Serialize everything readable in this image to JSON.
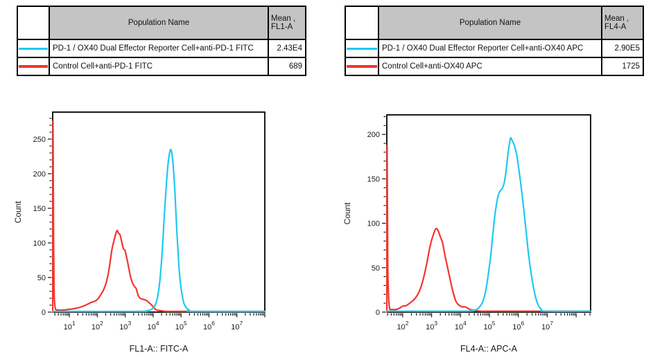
{
  "tables": [
    {
      "header": {
        "population": "Population Name",
        "mean_line1": "Mean ,",
        "mean_line2": "FL1-A"
      },
      "rows": [
        {
          "color": "#1ec9f2",
          "population": "PD-1 / OX40 Dual Effector Reporter Cell+anti-PD-1 FITC",
          "mean": "2.43E4"
        },
        {
          "color": "#f5342c",
          "population": "Control Cell+anti-PD-1 FITC",
          "mean": "689"
        }
      ]
    },
    {
      "header": {
        "population": "Population Name",
        "mean_line1": "Mean ,",
        "mean_line2": "FL4-A"
      },
      "rows": [
        {
          "color": "#1ec9f2",
          "population": "PD-1 / OX40 Dual Effector Reporter Cell+anti-OX40 APC",
          "mean": "2.90E5"
        },
        {
          "color": "#f5342c",
          "population": "Control Cell+anti-OX40 APC",
          "mean": "1725"
        }
      ]
    }
  ],
  "colors": {
    "cyan": "#1ec9f2",
    "red": "#f5342c",
    "table_header_bg": "#c4c4c4",
    "axis": "#000000"
  },
  "chart_data": [
    {
      "type": "line",
      "title": "",
      "xlabel": "FL1-A:: FITC-A",
      "ylabel": "Count",
      "x_scale": "log10",
      "x_range_decades": [
        0.4,
        8.0
      ],
      "x_tick_decades": [
        1,
        2,
        3,
        4,
        5,
        6,
        7
      ],
      "ylim": [
        0,
        289
      ],
      "y_ticks": [
        0,
        50,
        100,
        150,
        200,
        250
      ],
      "y_minor_step": 10,
      "grid": false,
      "legend_position": "none",
      "series": [
        {
          "name": "Control Cell+anti-PD-1 FITC",
          "color": "#f5342c",
          "mean": "689",
          "points_decade_count": [
            [
              0.4,
              0
            ],
            [
              0.41,
              275
            ],
            [
              0.43,
              118
            ],
            [
              0.45,
              30
            ],
            [
              0.49,
              6
            ],
            [
              0.58,
              3
            ],
            [
              0.78,
              3
            ],
            [
              0.98,
              4
            ],
            [
              1.18,
              5
            ],
            [
              1.38,
              7
            ],
            [
              1.58,
              10
            ],
            [
              1.78,
              14
            ],
            [
              1.92,
              16
            ],
            [
              2.02,
              19
            ],
            [
              2.12,
              25
            ],
            [
              2.22,
              32
            ],
            [
              2.32,
              43
            ],
            [
              2.42,
              62
            ],
            [
              2.52,
              90
            ],
            [
              2.6,
              104
            ],
            [
              2.66,
              113
            ],
            [
              2.71,
              118
            ],
            [
              2.76,
              114
            ],
            [
              2.81,
              112
            ],
            [
              2.87,
              102
            ],
            [
              2.93,
              92
            ],
            [
              2.99,
              89
            ],
            [
              3.06,
              77
            ],
            [
              3.13,
              63
            ],
            [
              3.19,
              51
            ],
            [
              3.26,
              42
            ],
            [
              3.33,
              37
            ],
            [
              3.39,
              34
            ],
            [
              3.45,
              26
            ],
            [
              3.51,
              21
            ],
            [
              3.59,
              19
            ],
            [
              3.69,
              18
            ],
            [
              3.79,
              16
            ],
            [
              3.87,
              13
            ],
            [
              3.95,
              10
            ],
            [
              4.03,
              6
            ],
            [
              4.13,
              3
            ],
            [
              4.28,
              2
            ],
            [
              4.5,
              1
            ],
            [
              5.2,
              1
            ],
            [
              8.0,
              1
            ]
          ]
        },
        {
          "name": "PD-1 / OX40 Dual Effector Reporter Cell+anti-PD-1 FITC",
          "color": "#1ec9f2",
          "mean": "2.43E4",
          "points_decade_count": [
            [
              0.4,
              1
            ],
            [
              3.55,
              1
            ],
            [
              3.76,
              2
            ],
            [
              3.9,
              3
            ],
            [
              4.0,
              6
            ],
            [
              4.08,
              11
            ],
            [
              4.16,
              22
            ],
            [
              4.24,
              45
            ],
            [
              4.32,
              85
            ],
            [
              4.4,
              140
            ],
            [
              4.47,
              183
            ],
            [
              4.53,
              213
            ],
            [
              4.59,
              230
            ],
            [
              4.63,
              235
            ],
            [
              4.68,
              227
            ],
            [
              4.73,
              205
            ],
            [
              4.78,
              173
            ],
            [
              4.83,
              131
            ],
            [
              4.88,
              95
            ],
            [
              4.93,
              62
            ],
            [
              4.99,
              38
            ],
            [
              5.05,
              22
            ],
            [
              5.11,
              12
            ],
            [
              5.19,
              6
            ],
            [
              5.29,
              3
            ],
            [
              5.42,
              1
            ],
            [
              8.0,
              1
            ]
          ]
        }
      ]
    },
    {
      "type": "line",
      "title": "",
      "xlabel": "FL4-A:: APC-A",
      "ylabel": "Count",
      "x_scale": "log10",
      "x_range_decades": [
        1.45,
        8.5
      ],
      "x_tick_decades": [
        2,
        3,
        4,
        5,
        6,
        7
      ],
      "ylim": [
        0,
        222
      ],
      "y_ticks": [
        0,
        50,
        100,
        150,
        200
      ],
      "y_minor_step": 10,
      "grid": false,
      "legend_position": "none",
      "series": [
        {
          "name": "Control Cell+anti-OX40 APC",
          "color": "#f5342c",
          "mean": "1725",
          "points_decade_count": [
            [
              1.45,
              0
            ],
            [
              1.46,
              187
            ],
            [
              1.48,
              60
            ],
            [
              1.5,
              28
            ],
            [
              1.54,
              5
            ],
            [
              1.62,
              3
            ],
            [
              1.78,
              3
            ],
            [
              1.92,
              5
            ],
            [
              2.02,
              7
            ],
            [
              2.1,
              7
            ],
            [
              2.2,
              9
            ],
            [
              2.32,
              12
            ],
            [
              2.44,
              16
            ],
            [
              2.54,
              21
            ],
            [
              2.64,
              29
            ],
            [
              2.74,
              41
            ],
            [
              2.84,
              56
            ],
            [
              2.92,
              70
            ],
            [
              3.0,
              81
            ],
            [
              3.08,
              89
            ],
            [
              3.15,
              94
            ],
            [
              3.22,
              92
            ],
            [
              3.3,
              85
            ],
            [
              3.38,
              78
            ],
            [
              3.46,
              64
            ],
            [
              3.54,
              52
            ],
            [
              3.62,
              40
            ],
            [
              3.7,
              28
            ],
            [
              3.78,
              18
            ],
            [
              3.86,
              11
            ],
            [
              3.94,
              8
            ],
            [
              4.04,
              6
            ],
            [
              4.14,
              6
            ],
            [
              4.22,
              5
            ],
            [
              4.32,
              3
            ],
            [
              4.46,
              2
            ],
            [
              4.7,
              1
            ],
            [
              5.2,
              1
            ],
            [
              8.5,
              1
            ]
          ]
        },
        {
          "name": "PD-1 / OX40 Dual Effector Reporter Cell+anti-OX40 APC",
          "color": "#1ec9f2",
          "mean": "2.90E5",
          "points_decade_count": [
            [
              1.45,
              1
            ],
            [
              4.2,
              1
            ],
            [
              4.4,
              2
            ],
            [
              4.56,
              3
            ],
            [
              4.66,
              6
            ],
            [
              4.76,
              11
            ],
            [
              4.86,
              22
            ],
            [
              4.95,
              40
            ],
            [
              5.04,
              62
            ],
            [
              5.12,
              88
            ],
            [
              5.2,
              112
            ],
            [
              5.28,
              128
            ],
            [
              5.36,
              136
            ],
            [
              5.44,
              139
            ],
            [
              5.5,
              144
            ],
            [
              5.56,
              155
            ],
            [
              5.62,
              172
            ],
            [
              5.68,
              187
            ],
            [
              5.73,
              196
            ],
            [
              5.77,
              194
            ],
            [
              5.82,
              191
            ],
            [
              5.88,
              186
            ],
            [
              5.95,
              176
            ],
            [
              6.02,
              160
            ],
            [
              6.09,
              143
            ],
            [
              6.16,
              124
            ],
            [
              6.23,
              103
            ],
            [
              6.3,
              81
            ],
            [
              6.38,
              58
            ],
            [
              6.46,
              40
            ],
            [
              6.54,
              25
            ],
            [
              6.62,
              14
            ],
            [
              6.7,
              7
            ],
            [
              6.8,
              3
            ],
            [
              6.92,
              1
            ],
            [
              8.5,
              1
            ]
          ]
        }
      ]
    }
  ]
}
